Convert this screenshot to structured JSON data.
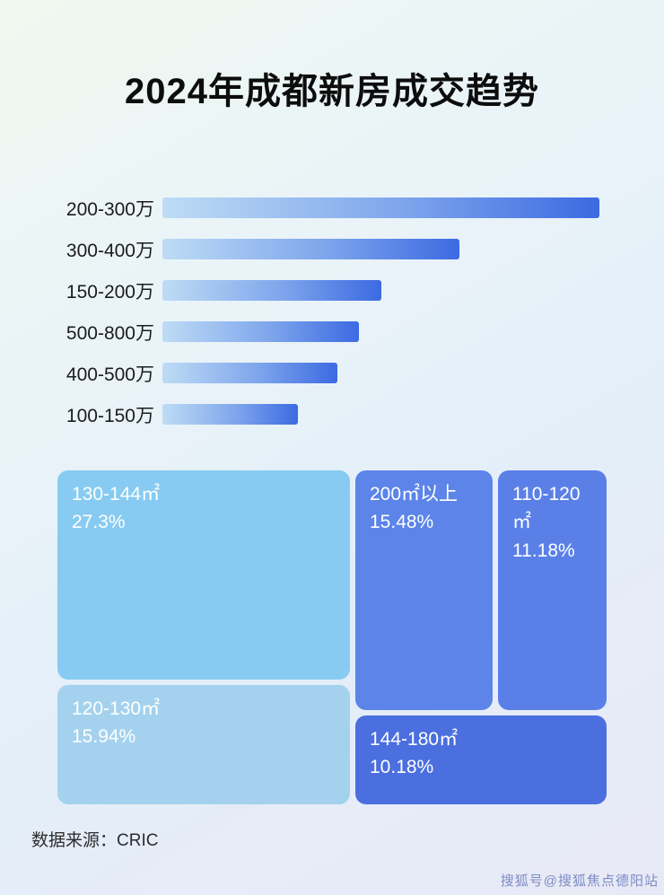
{
  "page": {
    "title": "2024年成都新房成交趋势",
    "source_label": "数据来源：CRIC",
    "watermark": "搜狐号@搜狐焦点德阳站"
  },
  "colors": {
    "bar_gradient_start": "#bedcf5",
    "bar_gradient_end": "#3c6ae2",
    "cell_130_144": "#87cbf2",
    "cell_200_plus": "#5c84e9",
    "cell_110_120": "#5a80e8",
    "cell_120_130": "#a4d2ee",
    "cell_144_180": "#4b6fdf",
    "background": "#e9f1f7"
  },
  "chart_data": [
    {
      "type": "bar",
      "orientation": "horizontal",
      "title": "",
      "categories": [
        "200-300万",
        "300-400万",
        "150-200万",
        "500-800万",
        "400-500万",
        "100-150万"
      ],
      "values": [
        100,
        68,
        50,
        45,
        40,
        31
      ],
      "value_note": "relative bar lengths, longest bar = 100; no numeric axis labels are shown in the image",
      "grid": false,
      "legend": false
    },
    {
      "type": "treemap",
      "title": "",
      "items": [
        {
          "label": "130-144㎡",
          "value": 27.3,
          "value_label": "27.3%"
        },
        {
          "label": "200㎡以上",
          "value": 15.48,
          "value_label": "15.48%"
        },
        {
          "label": "110-120㎡",
          "value": 11.18,
          "value_label": "11.18%"
        },
        {
          "label": "120-130㎡",
          "value": 15.94,
          "value_label": "15.94%"
        },
        {
          "label": "144-180㎡",
          "value": 10.18,
          "value_label": "10.18%"
        }
      ]
    }
  ]
}
